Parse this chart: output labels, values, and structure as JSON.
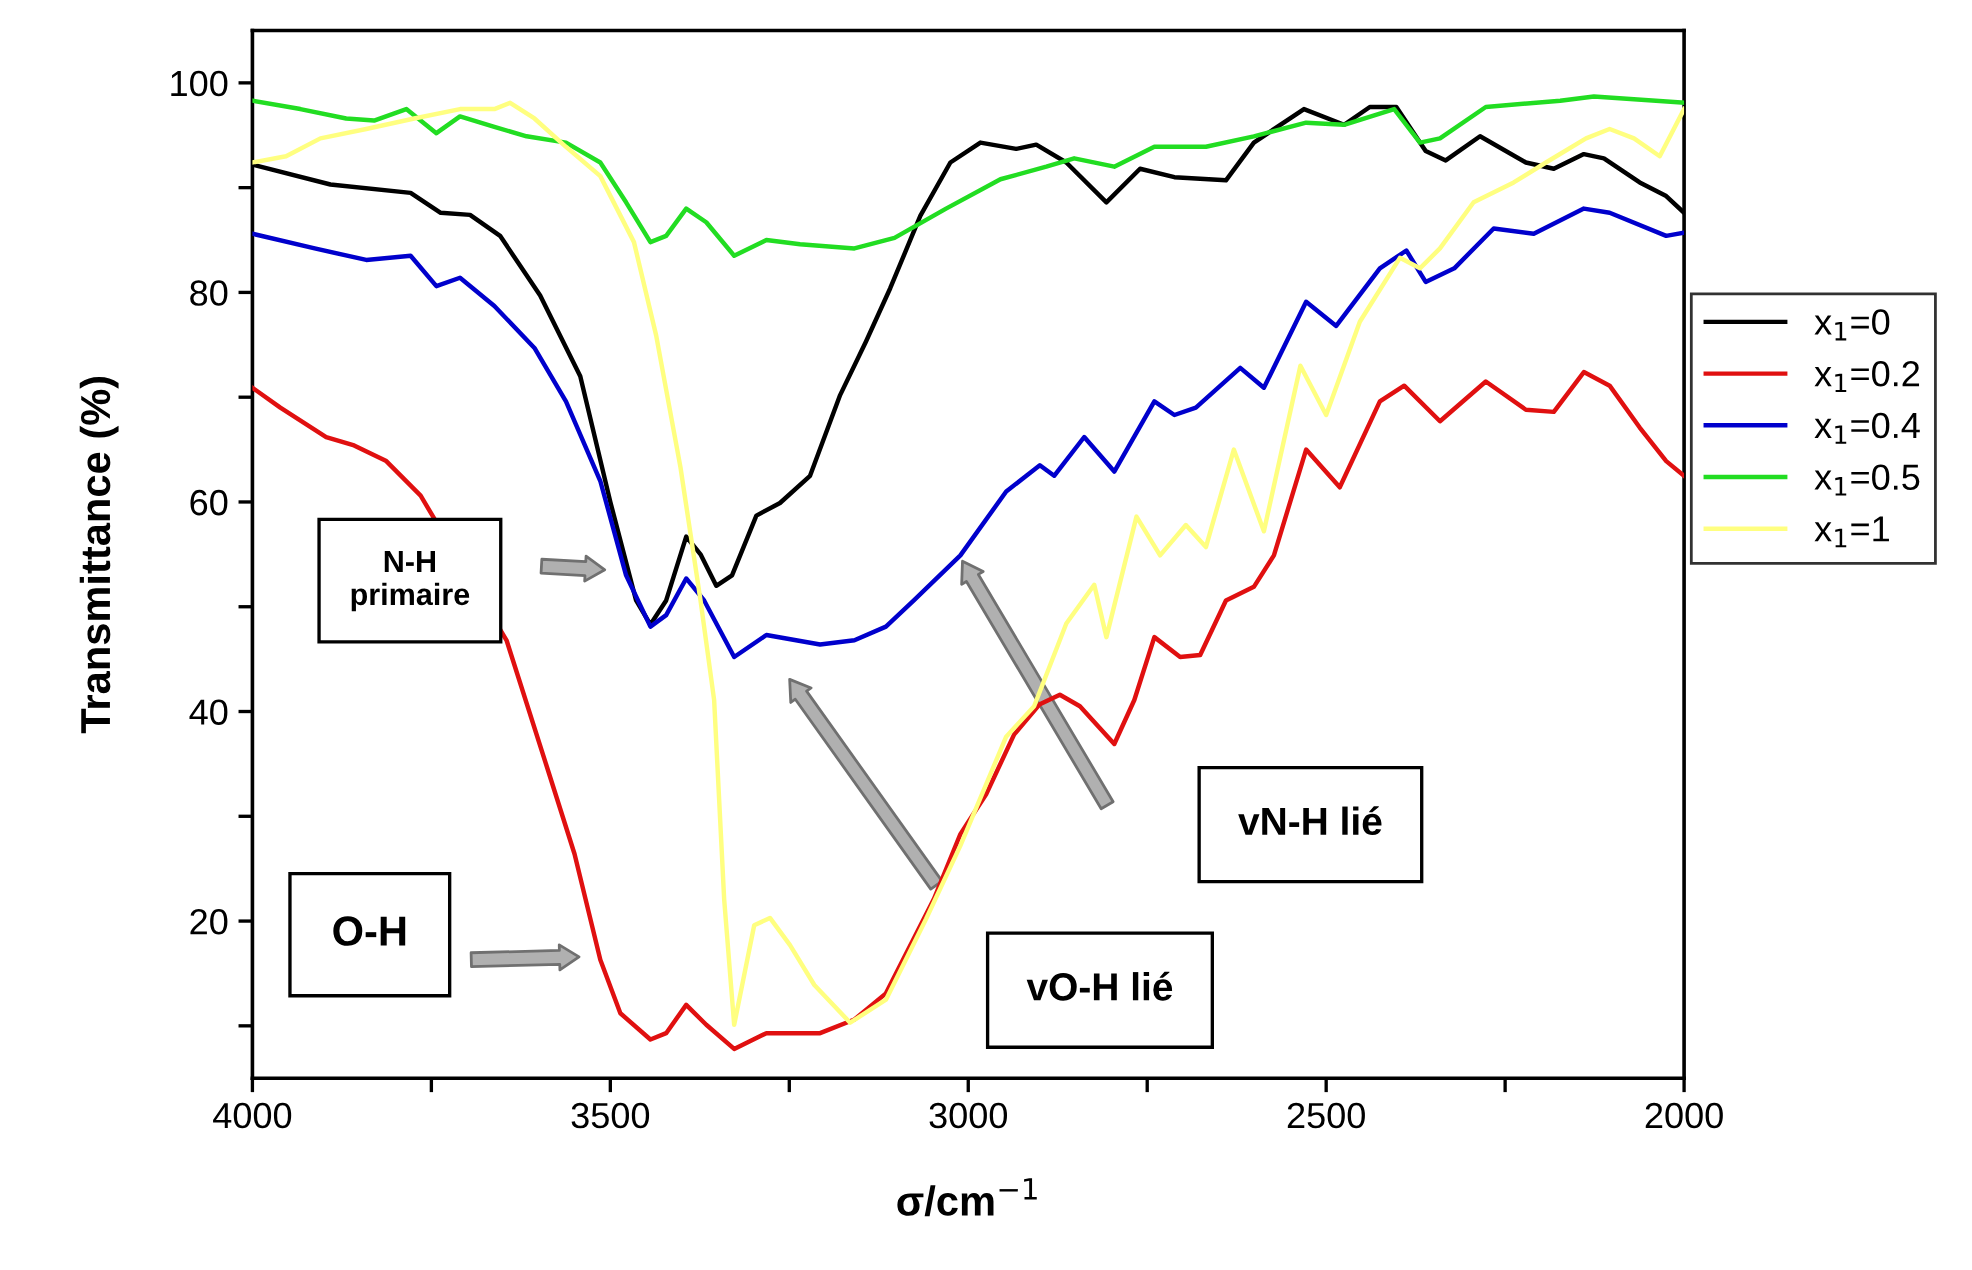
{
  "chart_data": {
    "type": "line",
    "xlabel": "σ/cm$^{−1}$",
    "ylabel": "Transmittance (%)",
    "xlim": [
      4000,
      2000
    ],
    "ylim": [
      5,
      105
    ],
    "xticks": [
      4000,
      {
        "value": 3750,
        "label": null
      },
      3500,
      {
        "value": 3250,
        "label": null
      },
      3000,
      {
        "value": 2750,
        "label": null
      },
      2500,
      {
        "value": 2250,
        "label": null
      },
      2000
    ],
    "yticks": [
      {
        "value": 10,
        "label": null
      },
      20,
      {
        "value": 30,
        "label": null
      },
      40,
      {
        "value": 50,
        "label": null
      },
      60,
      {
        "value": 70,
        "label": null
      },
      80,
      {
        "value": 90,
        "label": null
      },
      100
    ],
    "grid": false,
    "legend": "right",
    "marker": "none",
    "line_style": "solid",
    "annotations": [
      "N-H\nprimaire",
      "O-H",
      "vO-H lié",
      "vN-H lié"
    ],
    "series": [
      {
        "name": "x$_{1}$=0",
        "color": "#000000",
        "x": [
          4000,
          3891,
          3779,
          3737,
          3696,
          3654,
          3598,
          3542,
          3500,
          3464,
          3444,
          3422,
          3394,
          3374,
          3352,
          3330,
          3296,
          3263,
          3221,
          3179,
          3143,
          3109,
          3067,
          3025,
          2983,
          2933,
          2905,
          2863,
          2807,
          2760,
          2712,
          2640,
          2601,
          2531,
          2475,
          2439,
          2402,
          2361,
          2333,
          2285,
          2221,
          2182,
          2140,
          2112,
          2062,
          2025,
          2000
        ],
        "values": [
          92.2,
          90.3,
          89.5,
          87.6,
          87.4,
          85.4,
          79.7,
          72,
          60,
          50.6,
          48.3,
          50.6,
          56.7,
          55,
          52,
          53,
          58.7,
          59.9,
          62.5,
          70.2,
          75.3,
          80.4,
          87.3,
          92.4,
          94.3,
          93.7,
          94.1,
          92.4,
          88.6,
          91.8,
          91.0,
          90.7,
          94.3,
          97.5,
          96.0,
          97.7,
          97.7,
          93.5,
          92.6,
          94.9,
          92.4,
          91.8,
          93.2,
          92.8,
          90.5,
          89.2,
          87.6
        ]
      },
      {
        "name": "x$_{1}$=0.2",
        "color": "#e01010",
        "x": [
          4000,
          3961,
          3897,
          3858,
          3813,
          3765,
          3645,
          3589,
          3550,
          3514,
          3486,
          3444,
          3422,
          3394,
          3366,
          3327,
          3282,
          3207,
          3159,
          3115,
          3048,
          3011,
          2975,
          2936,
          2900,
          2872,
          2844,
          2796,
          2768,
          2740,
          2704,
          2676,
          2640,
          2601,
          2573,
          2528,
          2481,
          2425,
          2391,
          2341,
          2277,
          2221,
          2182,
          2140,
          2104,
          2062,
          2025,
          2000
        ],
        "values": [
          70.9,
          69.0,
          66.2,
          65.4,
          63.9,
          60.6,
          46.8,
          34.8,
          26.4,
          16.3,
          11.2,
          8.7,
          9.3,
          12.0,
          10.1,
          7.8,
          9.3,
          9.3,
          10.6,
          13.1,
          22.1,
          28.3,
          32.1,
          37.8,
          40.7,
          41.6,
          40.5,
          36.9,
          41.1,
          47.1,
          45.2,
          45.4,
          50.6,
          51.9,
          54.9,
          65.0,
          61.4,
          69.6,
          71.1,
          67.7,
          71.5,
          68.8,
          68.6,
          72.4,
          71.1,
          67.1,
          63.9,
          62.5
        ]
      },
      {
        "name": "x$_{1}$=0.4",
        "color": "#0000cc",
        "x": [
          4000,
          3913,
          3841,
          3779,
          3743,
          3710,
          3662,
          3606,
          3562,
          3514,
          3478,
          3444,
          3422,
          3394,
          3369,
          3327,
          3282,
          3207,
          3159,
          3115,
          3076,
          3011,
          2947,
          2900,
          2880,
          2838,
          2796,
          2740,
          2712,
          2682,
          2620,
          2587,
          2528,
          2486,
          2425,
          2388,
          2361,
          2321,
          2266,
          2210,
          2140,
          2104,
          2025,
          2000
        ],
        "values": [
          85.6,
          84.2,
          83.1,
          83.5,
          80.6,
          81.4,
          78.7,
          74.7,
          69.6,
          62.0,
          53.0,
          48.1,
          49.2,
          52.7,
          50.6,
          45.2,
          47.3,
          46.4,
          46.8,
          48.1,
          50.6,
          54.9,
          61.0,
          63.5,
          62.5,
          66.2,
          62.9,
          69.6,
          68.3,
          69.0,
          72.8,
          70.9,
          79.1,
          76.8,
          82.3,
          84.0,
          81.0,
          82.3,
          86.1,
          85.6,
          88.0,
          87.6,
          85.4,
          85.7
        ]
      },
      {
        "name": "x$_{1}$=0.5",
        "color": "#22dd22",
        "x": [
          4000,
          3933,
          3869,
          3830,
          3785,
          3743,
          3710,
          3662,
          3617,
          3562,
          3514,
          3478,
          3444,
          3422,
          3394,
          3366,
          3327,
          3282,
          3235,
          3159,
          3103,
          3031,
          2955,
          2891,
          2852,
          2796,
          2740,
          2668,
          2601,
          2528,
          2475,
          2405,
          2369,
          2341,
          2277,
          2173,
          2126,
          2000
        ],
        "values": [
          98.3,
          97.5,
          96.6,
          96.4,
          97.5,
          95.2,
          96.8,
          95.8,
          94.9,
          94.3,
          92.4,
          88.6,
          84.8,
          85.4,
          88.0,
          86.7,
          83.5,
          85.0,
          84.6,
          84.2,
          85.2,
          88.0,
          90.8,
          92.0,
          92.8,
          92.0,
          93.9,
          93.9,
          94.9,
          96.2,
          96.0,
          97.5,
          94.3,
          94.7,
          97.7,
          98.3,
          98.7,
          98.1
        ]
      },
      {
        "name": "x$_{1}$=1",
        "color": "#ffff80",
        "x": [
          4000,
          3953,
          3905,
          3841,
          3774,
          3710,
          3662,
          3640,
          3606,
          3562,
          3514,
          3467,
          3436,
          3402,
          3374,
          3355,
          3341,
          3327,
          3299,
          3277,
          3249,
          3215,
          3165,
          3115,
          3059,
          3011,
          2947,
          2908,
          2863,
          2824,
          2807,
          2765,
          2732,
          2696,
          2668,
          2629,
          2587,
          2536,
          2500,
          2453,
          2397,
          2369,
          2341,
          2294,
          2238,
          2193,
          2137,
          2104,
          2070,
          2034,
          2000
        ],
        "values": [
          92.4,
          93.0,
          94.7,
          95.6,
          96.6,
          97.5,
          97.5,
          98.1,
          96.6,
          93.9,
          91.1,
          84.8,
          75.9,
          63.3,
          50.6,
          41.1,
          22.1,
          10.1,
          19.6,
          20.3,
          17.7,
          13.9,
          10.3,
          12.5,
          20.2,
          27.2,
          37.6,
          40.5,
          48.4,
          52.1,
          47.1,
          58.6,
          54.9,
          57.8,
          55.7,
          65.0,
          57.2,
          73.0,
          68.3,
          77.2,
          83.3,
          82.3,
          84.2,
          88.6,
          90.5,
          92.4,
          94.7,
          95.6,
          94.7,
          93.0,
          97.5
        ]
      }
    ]
  }
}
